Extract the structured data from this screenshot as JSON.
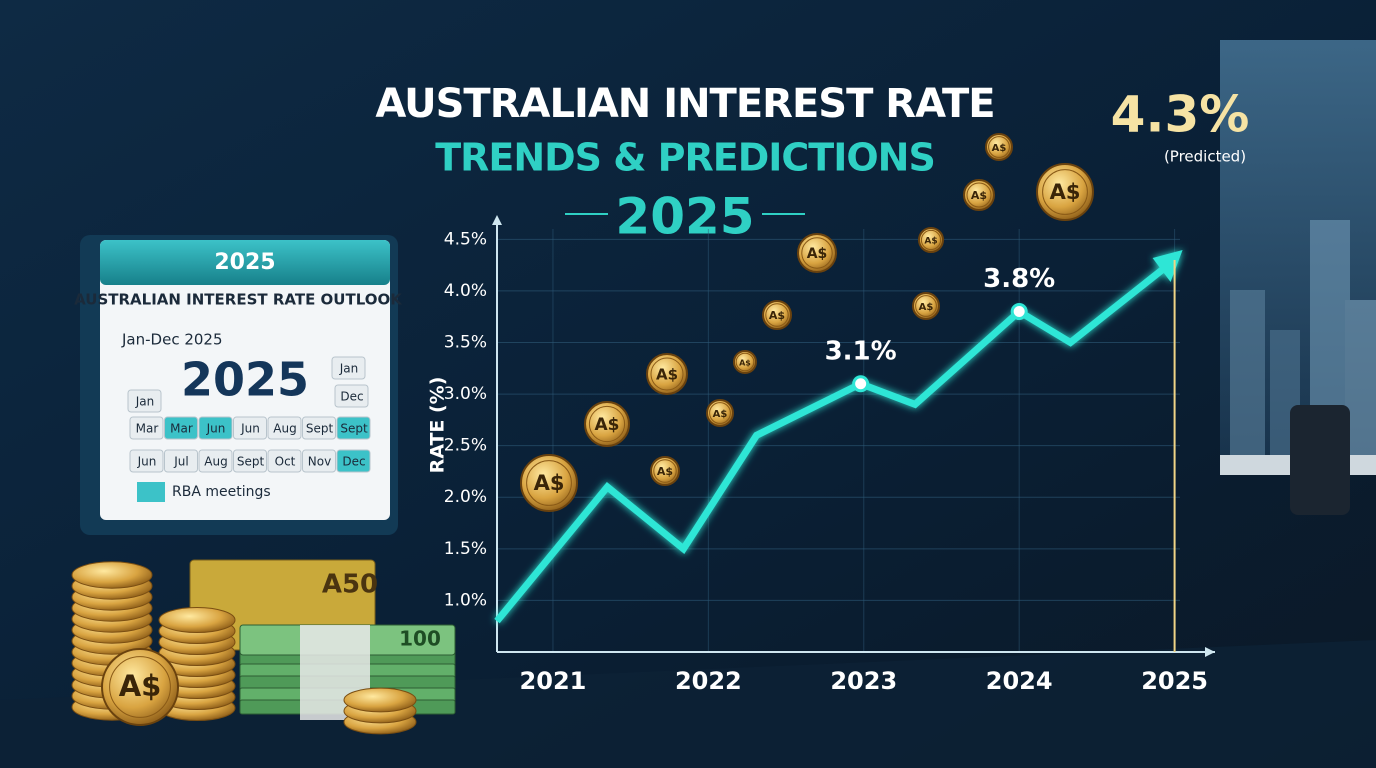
{
  "chart_data": {
    "type": "line",
    "title": "AUSTRALIAN INTEREST RATE",
    "subtitle": "TRENDS & PREDICTIONS",
    "title_year": "2025",
    "y_label": "RATE (%)",
    "xlim": [
      2020.64,
      2025.26
    ],
    "xticks": [
      2021,
      2022,
      2023,
      2024,
      2025
    ],
    "ylim": [
      0.5,
      4.6
    ],
    "yticks": [
      {
        "value": 1.0,
        "label": "1.0%"
      },
      {
        "value": 1.5,
        "label": "1.5%"
      },
      {
        "value": 2.0,
        "label": "2.0%"
      },
      {
        "value": 2.5,
        "label": "2.5%"
      },
      {
        "value": 3.0,
        "label": "3.0%"
      },
      {
        "value": 3.5,
        "label": "3.5%"
      },
      {
        "value": 4.0,
        "label": "4.0%"
      },
      {
        "value": 4.5,
        "label": "4.5%"
      }
    ],
    "series": [
      {
        "name": "Interest rate",
        "color": "#2ee6d6",
        "x": [
          2020.64,
          2021.35,
          2021.84,
          2022.31,
          2022.98,
          2023.33,
          2024.0,
          2024.33,
          2025.0
        ],
        "values": [
          0.8,
          2.1,
          1.5,
          2.6,
          3.1,
          2.9,
          3.8,
          3.5,
          4.3
        ],
        "value_labels": [
          null,
          null,
          null,
          null,
          "3.1%",
          null,
          "3.8%",
          null,
          "4.3%"
        ]
      }
    ],
    "annotation": "(Predicted)"
  },
  "calendar": {
    "header": "2025",
    "title": "AUSTRALIAN INTEREST RATE OUTLOOK",
    "range": "Jan-Dec 2025",
    "big_year": "2025",
    "legend": "RBA meetings",
    "rows": [
      [
        {
          "label": "Jan",
          "highlight": false
        }
      ],
      [
        {
          "label": "Jan",
          "highlight": false
        },
        {
          "label": "Dec",
          "highlight": false
        }
      ],
      [
        {
          "label": "Mar",
          "highlight": false
        },
        {
          "label": "Mar",
          "highlight": true
        },
        {
          "label": "Jun",
          "highlight": true
        },
        {
          "label": "Jun",
          "highlight": false
        },
        {
          "label": "Aug",
          "highlight": false
        },
        {
          "label": "Sept",
          "highlight": false
        },
        {
          "label": "Sept",
          "highlight": true
        }
      ],
      [
        {
          "label": "Jun",
          "highlight": false
        },
        {
          "label": "Jul",
          "highlight": false
        },
        {
          "label": "Aug",
          "highlight": false
        },
        {
          "label": "Sept",
          "highlight": false
        },
        {
          "label": "Oct",
          "highlight": false
        },
        {
          "label": "Nov",
          "highlight": false
        },
        {
          "label": "Dec",
          "highlight": true
        }
      ]
    ]
  },
  "coin_label": "A$",
  "banknotes": [
    "A50",
    "100"
  ]
}
